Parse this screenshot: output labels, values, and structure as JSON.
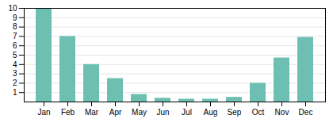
{
  "chart_data": {
    "type": "bar",
    "categories": [
      "Jan",
      "Feb",
      "Mar",
      "Apr",
      "May",
      "Jun",
      "Jul",
      "Aug",
      "Sep",
      "Oct",
      "Nov",
      "Dec"
    ],
    "values": [
      10,
      7,
      4,
      2.5,
      0.8,
      0.4,
      0.3,
      0.3,
      0.5,
      2,
      4.7,
      6.9
    ],
    "color": "#6dbfb2",
    "ylim": [
      0,
      10
    ],
    "yticks": [
      1,
      2,
      3,
      4,
      5,
      6,
      7,
      8,
      9,
      10
    ],
    "grid": true
  }
}
